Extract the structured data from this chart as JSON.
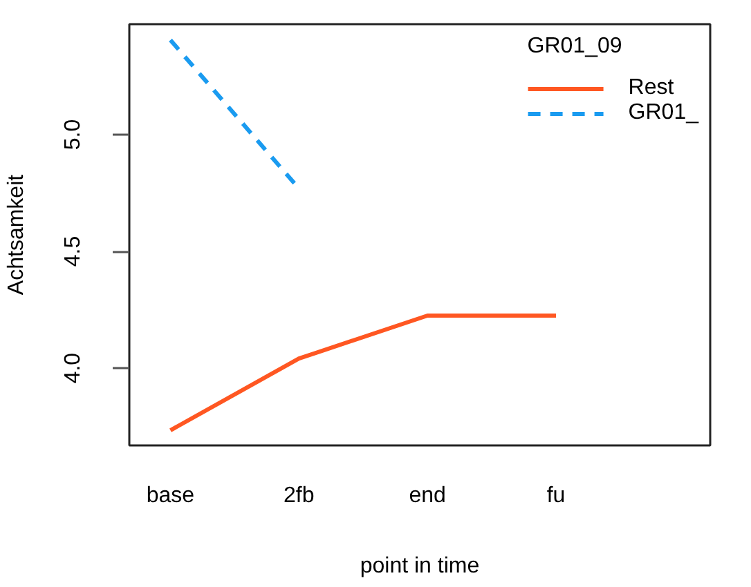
{
  "chart_data": {
    "type": "line",
    "xlabel": "point in time",
    "ylabel": "Achtsamkeit",
    "legend_title": "GR01_09",
    "categories": [
      "base",
      "2fb",
      "end",
      "fu"
    ],
    "series": [
      {
        "name": "Rest",
        "color": "#ff5722",
        "line_style": "solid",
        "values": [
          3.734,
          4.041,
          4.225,
          4.225
        ]
      },
      {
        "name": "GR01_",
        "color": "#1a9bf0",
        "line_style": "dashed",
        "values": [
          5.405,
          4.769,
          null,
          null
        ]
      }
    ],
    "ylim": [
      3.669,
      5.473
    ],
    "yticks": [
      {
        "value": 4.0,
        "label": "4.0"
      },
      {
        "value": 4.5,
        "label": "4.5"
      },
      {
        "value": 5.0,
        "label": "5.0"
      }
    ],
    "grid": false,
    "legend": "top right"
  }
}
